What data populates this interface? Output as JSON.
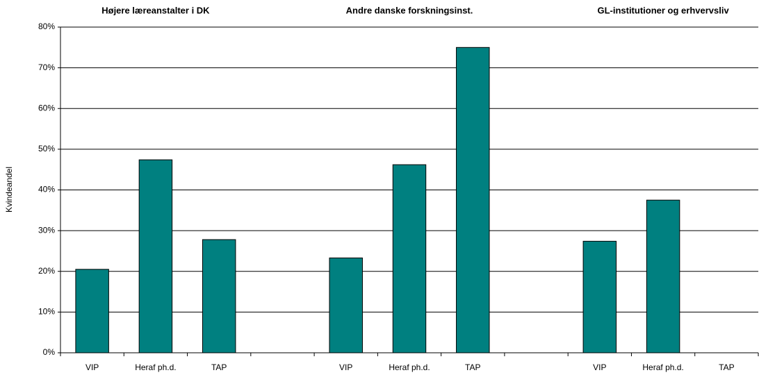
{
  "chart_data": {
    "type": "bar",
    "y_label": "Kvindeandel",
    "group_titles": [
      "Højere læreanstalter i DK",
      "Andre danske forskningsinst.",
      "GL-institutioner og erhvervsliv"
    ],
    "categories": [
      "VIP",
      "Heraf ph.d.",
      "TAP",
      null,
      "VIP",
      "Heraf ph.d.",
      "TAP",
      null,
      "VIP",
      "Heraf ph.d.",
      "TAP"
    ],
    "values": [
      20.5,
      47.4,
      27.8,
      null,
      23.3,
      46.2,
      75.0,
      null,
      27.4,
      37.5,
      null
    ],
    "color": "#008080",
    "ylim": [
      0,
      80
    ],
    "yticks": [
      {
        "value": 0,
        "label": "0%"
      },
      {
        "value": 10,
        "label": "10%"
      },
      {
        "value": 20,
        "label": "20%"
      },
      {
        "value": 30,
        "label": "30%"
      },
      {
        "value": 40,
        "label": "40%"
      },
      {
        "value": 50,
        "label": "50%"
      },
      {
        "value": 60,
        "label": "60%"
      },
      {
        "value": 70,
        "label": "70%"
      },
      {
        "value": 80,
        "label": "80%"
      }
    ],
    "grid": true
  }
}
